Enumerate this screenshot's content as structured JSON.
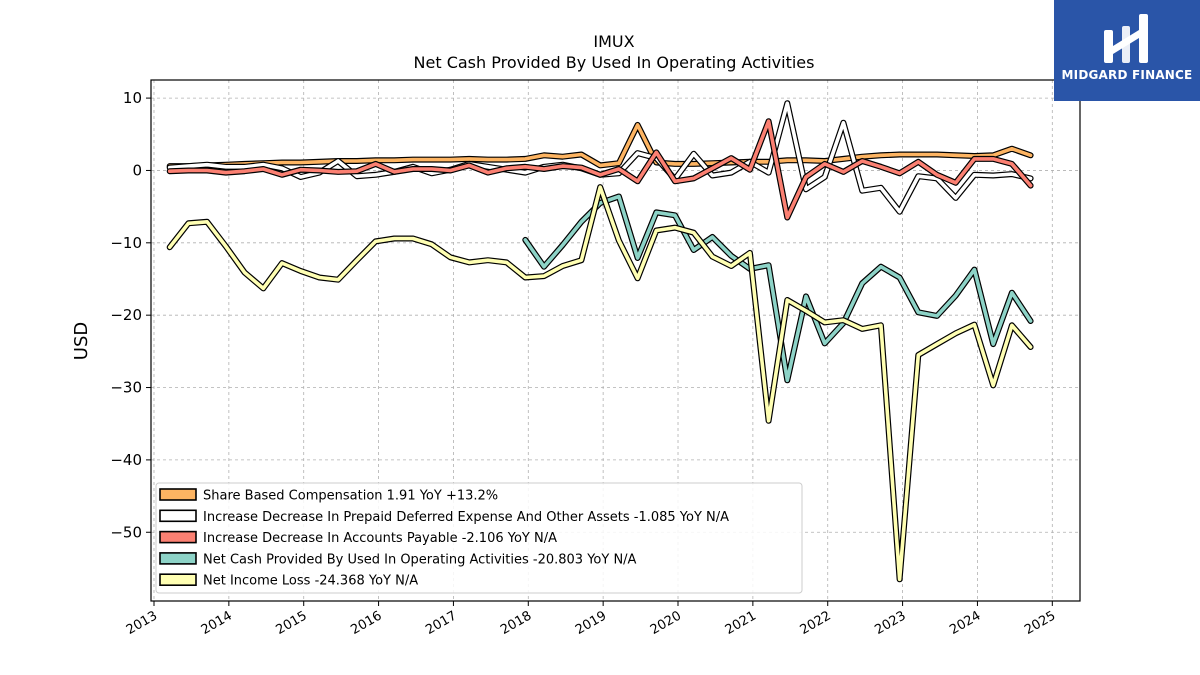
{
  "logo": {
    "text": "MIDGARD FINANCE",
    "bg": "#2a55a8"
  },
  "chart_data": {
    "type": "line",
    "title": "IMUX",
    "subtitle": "Net Cash Provided By Used In Operating Activities",
    "ylabel": "USD",
    "xlabel": "",
    "xlim": [
      2012.96,
      2025.37
    ],
    "ylim": [
      -59.5,
      12.5
    ],
    "yticks": [
      10,
      0,
      -10,
      -20,
      -30,
      -40,
      -50
    ],
    "xticks": [
      "2013",
      "2014",
      "2015",
      "2016",
      "2017",
      "2018",
      "2019",
      "2020",
      "2021",
      "2022",
      "2023",
      "2024",
      "2025"
    ],
    "grid": true,
    "legend_position": "lower-left",
    "series": [
      {
        "name": "Share Based Compensation",
        "legend_label": "Share Based Compensation  1.91 YoY +13.2%",
        "color": "#fdb462",
        "x": [
          2013.21,
          2013.46,
          2013.71,
          2013.96,
          2014.21,
          2014.46,
          2014.71,
          2014.96,
          2015.21,
          2015.46,
          2015.71,
          2015.96,
          2016.21,
          2016.46,
          2016.71,
          2016.96,
          2017.21,
          2017.46,
          2017.71,
          2017.96,
          2018.21,
          2018.46,
          2018.71,
          2018.96,
          2019.21,
          2019.46,
          2019.71,
          2019.96,
          2020.21,
          2020.46,
          2020.71,
          2020.96,
          2021.21,
          2021.46,
          2021.71,
          2021.96,
          2022.21,
          2022.46,
          2022.71,
          2022.96,
          2023.21,
          2023.46,
          2023.71,
          2023.96,
          2024.21,
          2024.46,
          2024.71
        ],
        "y": [
          0.6,
          0.6,
          0.7,
          0.8,
          0.9,
          1.0,
          1.1,
          1.1,
          1.2,
          1.3,
          1.3,
          1.4,
          1.4,
          1.5,
          1.5,
          1.5,
          1.6,
          1.5,
          1.5,
          1.6,
          2.1,
          1.9,
          2.2,
          0.7,
          1.0,
          6.3,
          1.1,
          0.9,
          0.9,
          1.0,
          1.1,
          1.2,
          1.2,
          1.4,
          1.4,
          1.3,
          1.6,
          1.9,
          2.1,
          2.2,
          2.2,
          2.2,
          2.1,
          2.0,
          2.1,
          3.0,
          2.1
        ]
      },
      {
        "name": "Increase Decrease In Prepaid Deferred Expense And Other Assets",
        "legend_label": "Increase Decrease In Prepaid Deferred Expense And Other Assets  -1.085 YoY N/A",
        "color": "#ffffff",
        "x": [
          2013.21,
          2013.46,
          2013.71,
          2013.96,
          2014.21,
          2014.46,
          2014.71,
          2014.96,
          2015.21,
          2015.46,
          2015.71,
          2015.96,
          2016.21,
          2016.46,
          2016.71,
          2016.96,
          2017.21,
          2017.46,
          2017.71,
          2017.96,
          2018.21,
          2018.46,
          2018.71,
          2018.96,
          2019.21,
          2019.46,
          2019.71,
          2019.96,
          2020.21,
          2020.46,
          2020.71,
          2020.96,
          2021.21,
          2021.46,
          2021.71,
          2021.96,
          2022.21,
          2022.46,
          2022.71,
          2022.96,
          2023.21,
          2023.46,
          2023.71,
          2023.96,
          2024.21,
          2024.46,
          2024.71
        ],
        "y": [
          0.4,
          0.6,
          0.8,
          0.5,
          0.5,
          0.8,
          0.3,
          -0.9,
          -0.3,
          1.3,
          -0.8,
          -0.6,
          -0.2,
          0.5,
          -0.4,
          0.1,
          0.9,
          0.5,
          0.1,
          -0.3,
          0.5,
          0.8,
          0.3,
          -0.6,
          -0.4,
          2.4,
          1.7,
          -1.2,
          2.3,
          -0.7,
          -0.3,
          1.2,
          -0.3,
          9.3,
          -2.6,
          -0.9,
          6.6,
          -2.8,
          -2.4,
          -5.7,
          -0.8,
          -1.1,
          -3.8,
          -0.6,
          -0.7,
          -0.5,
          -1.1
        ]
      },
      {
        "name": "Increase Decrease In Accounts Payable",
        "legend_label": "Increase Decrease In Accounts Payable  -2.106 YoY N/A",
        "color": "#fb8072",
        "x": [
          2013.21,
          2013.46,
          2013.71,
          2013.96,
          2014.21,
          2014.46,
          2014.71,
          2014.96,
          2015.21,
          2015.46,
          2015.71,
          2015.96,
          2016.21,
          2016.46,
          2016.71,
          2016.96,
          2017.21,
          2017.46,
          2017.71,
          2017.96,
          2018.21,
          2018.46,
          2018.71,
          2018.96,
          2019.21,
          2019.46,
          2019.71,
          2019.96,
          2020.21,
          2020.46,
          2020.71,
          2020.96,
          2021.21,
          2021.46,
          2021.71,
          2021.96,
          2022.21,
          2022.46,
          2022.71,
          2022.96,
          2023.21,
          2023.46,
          2023.71,
          2023.96,
          2024.21,
          2024.46,
          2024.71
        ],
        "y": [
          -0.1,
          0.0,
          0.0,
          -0.3,
          -0.1,
          0.2,
          -0.6,
          0.1,
          0.0,
          -0.2,
          -0.1,
          0.9,
          -0.2,
          0.2,
          0.2,
          0.0,
          0.7,
          -0.3,
          0.3,
          0.5,
          0.2,
          0.6,
          0.4,
          -0.6,
          0.2,
          -1.5,
          2.5,
          -1.5,
          -1.1,
          0.3,
          1.7,
          0.1,
          6.8,
          -6.5,
          -0.9,
          0.9,
          -0.2,
          1.3,
          0.5,
          -0.4,
          1.2,
          -0.6,
          -1.7,
          1.6,
          1.6,
          0.9,
          -2.1
        ]
      },
      {
        "name": "Net Cash Provided By Used In Operating Activities",
        "legend_label": "Net Cash Provided By Used In Operating Activities  -20.803 YoY N/A",
        "color": "#8dd3c7",
        "x": [
          2017.96,
          2018.21,
          2018.46,
          2018.71,
          2018.96,
          2019.21,
          2019.46,
          2019.71,
          2019.96,
          2020.21,
          2020.46,
          2020.71,
          2020.96,
          2021.21,
          2021.46,
          2021.71,
          2021.96,
          2022.21,
          2022.46,
          2022.71,
          2022.96,
          2023.21,
          2023.46,
          2023.71,
          2023.96,
          2024.21,
          2024.46,
          2024.71
        ],
        "y": [
          -9.6,
          -13.3,
          -10.3,
          -7.1,
          -4.5,
          -3.6,
          -12.1,
          -5.8,
          -6.2,
          -11.0,
          -9.2,
          -11.8,
          -13.6,
          -13.1,
          -29.0,
          -17.4,
          -23.9,
          -21.1,
          -15.6,
          -13.3,
          -14.8,
          -19.6,
          -20.1,
          -17.3,
          -13.7,
          -24.0,
          -16.9,
          -20.8
        ]
      },
      {
        "name": "Net Income Loss",
        "legend_label": "Net Income Loss  -24.368 YoY N/A",
        "color": "#ffffb3",
        "x": [
          2013.21,
          2013.46,
          2013.71,
          2013.96,
          2014.21,
          2014.46,
          2014.71,
          2014.96,
          2015.21,
          2015.46,
          2015.71,
          2015.96,
          2016.21,
          2016.46,
          2016.71,
          2016.96,
          2017.21,
          2017.46,
          2017.71,
          2017.96,
          2018.21,
          2018.46,
          2018.71,
          2018.96,
          2019.21,
          2019.46,
          2019.71,
          2019.96,
          2020.21,
          2020.46,
          2020.71,
          2020.96,
          2021.21,
          2021.46,
          2021.71,
          2021.96,
          2022.21,
          2022.46,
          2022.71,
          2022.96,
          2023.21,
          2023.46,
          2023.71,
          2023.96,
          2024.21,
          2024.46,
          2024.71
        ],
        "y": [
          -10.6,
          -7.3,
          -7.1,
          -10.5,
          -14.1,
          -16.3,
          -12.8,
          -13.9,
          -14.8,
          -15.1,
          -12.4,
          -9.8,
          -9.4,
          -9.4,
          -10.2,
          -12.0,
          -12.7,
          -12.4,
          -12.7,
          -14.8,
          -14.6,
          -13.2,
          -12.4,
          -2.3,
          -9.7,
          -14.9,
          -8.3,
          -7.9,
          -8.6,
          -11.9,
          -13.2,
          -11.4,
          -34.6,
          -17.9,
          -19.4,
          -21.0,
          -20.7,
          -21.9,
          -21.4,
          -56.5,
          -25.5,
          -24.0,
          -22.5,
          -21.3,
          -29.7,
          -21.4,
          -24.4
        ]
      }
    ]
  }
}
